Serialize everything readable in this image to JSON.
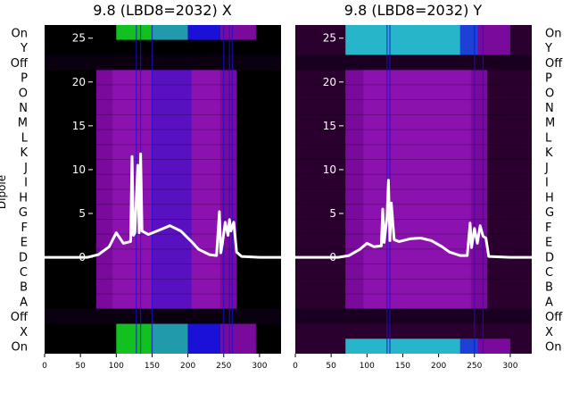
{
  "figure": {
    "left_title": "9.8 (LBD8=2032) X",
    "right_title": "9.8 (LBD8=2032) Y",
    "ylabel": "Dipole"
  },
  "row_labels_top_to_bottom": [
    "On",
    "Y",
    "Off",
    "P",
    "O",
    "N",
    "M",
    "L",
    "K",
    "J",
    "I",
    "H",
    "G",
    "F",
    "E",
    "D",
    "C",
    "B",
    "A",
    "Off",
    "X",
    "On"
  ],
  "colors": {
    "black": "#000000",
    "dark_purple": "#2a002e",
    "purple": "#7a0a9c",
    "violet": "#9b1ac0",
    "blue": "#1a10d8",
    "cyan": "#27b5c9",
    "green": "#12c020",
    "trace": "#ffffff"
  },
  "chart_data": [
    {
      "type": "heatmap",
      "title": "9.8 (LBD8=2032) X",
      "xlim": [
        0,
        330
      ],
      "x_ticks": [
        0,
        50,
        100,
        150,
        200,
        250,
        300
      ],
      "overlay_y_ticks": [
        0,
        5,
        10,
        15,
        20,
        25
      ],
      "overlay_ylim": [
        -11,
        26.5
      ],
      "rows": [
        "On",
        "Y",
        "Off",
        "P",
        "O",
        "N",
        "M",
        "L",
        "K",
        "J",
        "I",
        "H",
        "G",
        "F",
        "E",
        "D",
        "C",
        "B",
        "A",
        "Off",
        "X",
        "On"
      ],
      "overlay_trace": {
        "x": [
          0,
          60,
          75,
          90,
          100,
          110,
          120,
          122,
          124,
          126,
          130,
          132,
          134,
          136,
          138,
          145,
          160,
          175,
          190,
          205,
          215,
          230,
          240,
          244,
          246,
          248,
          252,
          256,
          258,
          260,
          264,
          268,
          275,
          300,
          330
        ],
        "y": [
          0,
          0,
          0.3,
          1.2,
          2.8,
          1.6,
          1.8,
          11.5,
          2.5,
          2.8,
          10.5,
          2.8,
          11.8,
          3.0,
          2.9,
          2.6,
          3.1,
          3.6,
          3.0,
          1.8,
          0.9,
          0.3,
          0.2,
          5.2,
          0.5,
          1.5,
          4.0,
          2.5,
          4.3,
          3.0,
          4.0,
          0.6,
          0.1,
          0,
          0
        ]
      }
    },
    {
      "type": "heatmap",
      "title": "9.8 (LBD8=2032) Y",
      "xlim": [
        0,
        330
      ],
      "x_ticks": [
        0,
        50,
        100,
        150,
        200,
        250,
        300
      ],
      "overlay_y_ticks": [
        0,
        5,
        10,
        15,
        20,
        25
      ],
      "overlay_ylim": [
        -11,
        26.5
      ],
      "rows": [
        "On",
        "Y",
        "Off",
        "P",
        "O",
        "N",
        "M",
        "L",
        "K",
        "J",
        "I",
        "H",
        "G",
        "F",
        "E",
        "D",
        "C",
        "B",
        "A",
        "Off",
        "X",
        "On"
      ],
      "overlay_trace": {
        "x": [
          0,
          60,
          75,
          90,
          100,
          110,
          120,
          122,
          124,
          128,
          130,
          132,
          134,
          138,
          145,
          160,
          175,
          190,
          205,
          215,
          230,
          240,
          244,
          246,
          250,
          254,
          258,
          262,
          266,
          270,
          300,
          330
        ],
        "y": [
          0,
          0,
          0.2,
          0.9,
          1.6,
          1.2,
          1.3,
          5.5,
          1.7,
          4.6,
          8.8,
          1.9,
          6.2,
          2.0,
          1.8,
          2.1,
          2.2,
          1.9,
          1.2,
          0.6,
          0.2,
          0.2,
          3.9,
          1.1,
          3.3,
          1.6,
          3.6,
          2.4,
          2.2,
          0.1,
          0,
          0
        ]
      }
    }
  ]
}
